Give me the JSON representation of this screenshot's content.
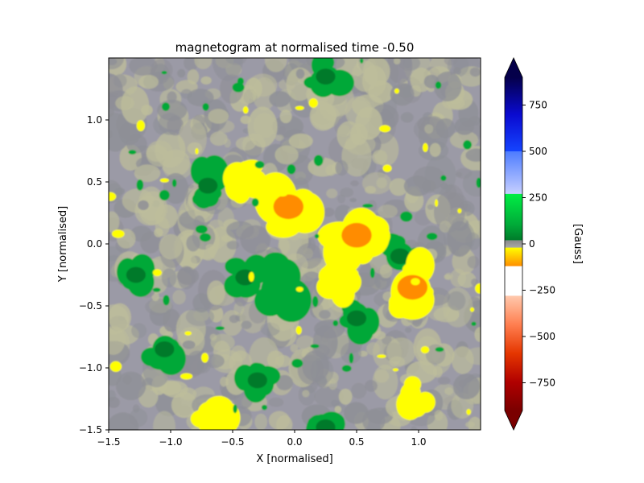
{
  "chart_data": {
    "type": "heatmap",
    "title": "magnetogram at normalised time -0.50",
    "xlabel": "X [normalised]",
    "ylabel": "Y [normalised]",
    "xlim": [
      -1.5,
      1.5
    ],
    "ylim": [
      -1.5,
      1.5
    ],
    "x_ticks": [
      {
        "value": -1.5,
        "label": "−1.5"
      },
      {
        "value": -1.0,
        "label": "−1.0"
      },
      {
        "value": -0.5,
        "label": "−0.5"
      },
      {
        "value": 0.0,
        "label": "0.0"
      },
      {
        "value": 0.5,
        "label": "0.5"
      },
      {
        "value": 1.0,
        "label": "1.0"
      }
    ],
    "y_ticks": [
      {
        "value": -1.5,
        "label": "−1.5"
      },
      {
        "value": -1.0,
        "label": "−1.0"
      },
      {
        "value": -0.5,
        "label": "−0.5"
      },
      {
        "value": 0.0,
        "label": "0.0"
      },
      {
        "value": 0.5,
        "label": "0.5"
      },
      {
        "value": 1.0,
        "label": "1.0"
      }
    ],
    "colorbar": {
      "label": "[Gauss]",
      "range": [
        -900,
        900
      ],
      "extend": "both",
      "ticks": [
        {
          "value": 750,
          "label": "750"
        },
        {
          "value": 500,
          "label": "500"
        },
        {
          "value": 250,
          "label": "250"
        },
        {
          "value": 0,
          "label": "0"
        },
        {
          "value": -250,
          "label": "−250"
        },
        {
          "value": -500,
          "label": "−500"
        },
        {
          "value": -750,
          "label": "−750"
        }
      ],
      "segments": [
        {
          "from": 900,
          "to": 500,
          "colors": [
            "#05004a",
            "#0a0ad0",
            "#1545ff"
          ]
        },
        {
          "from": 500,
          "to": 270,
          "colors": [
            "#4d7cff",
            "#c8d0ff"
          ]
        },
        {
          "from": 270,
          "to": 100,
          "colors": [
            "#00ee44",
            "#00a838"
          ]
        },
        {
          "from": 100,
          "to": 20,
          "colors": [
            "#00a838",
            "#007a2a"
          ]
        },
        {
          "from": 20,
          "to": -20,
          "colors": [
            "#888888",
            "#aaaaaa"
          ]
        },
        {
          "from": -20,
          "to": -120,
          "colors": [
            "#ffff00",
            "#ff8c00"
          ]
        },
        {
          "from": -120,
          "to": -280,
          "colors": [
            "#ffffff"
          ]
        },
        {
          "from": -280,
          "to": -900,
          "colors": [
            "#ffc9ad",
            "#ff7f50",
            "#e53600",
            "#b00000",
            "#7a0000"
          ]
        }
      ],
      "extend_min_color": "#7a0000",
      "extend_max_color": "#05004a"
    },
    "field_values": {
      "background": {
        "low": -15,
        "high": 15,
        "colors": [
          "#9b9aa6",
          "#bdbd9b",
          "#8e8f96"
        ]
      },
      "positive_polarity": [
        {
          "x": -1.28,
          "y": -0.25,
          "bx": 60
        },
        {
          "x": -0.12,
          "y": -0.3,
          "bx": 80
        },
        {
          "x": -1.05,
          "y": -0.85,
          "bx": 60
        },
        {
          "x": -0.4,
          "y": -0.27,
          "bx": 60
        },
        {
          "x": 0.5,
          "y": -0.6,
          "bx": 60
        },
        {
          "x": -0.3,
          "y": -1.1,
          "bx": 60
        },
        {
          "x": 0.85,
          "y": -0.1,
          "bx": 60
        },
        {
          "x": 0.25,
          "y": -1.48,
          "bx": 60
        },
        {
          "x": -0.7,
          "y": 0.47,
          "bx": 60
        },
        {
          "x": 0.25,
          "y": 1.35,
          "bx": 60
        }
      ],
      "negative_polarity": [
        {
          "x": -0.05,
          "y": 0.3,
          "bx": -120
        },
        {
          "x": 0.5,
          "y": 0.07,
          "bx": -110
        },
        {
          "x": 0.95,
          "y": -0.35,
          "bx": -110
        },
        {
          "x": -0.35,
          "y": 0.5,
          "bx": -60
        },
        {
          "x": 0.35,
          "y": -0.3,
          "bx": -60
        },
        {
          "x": 0.95,
          "y": -1.25,
          "bx": -60
        },
        {
          "x": -0.65,
          "y": -1.45,
          "bx": -60
        }
      ]
    }
  }
}
